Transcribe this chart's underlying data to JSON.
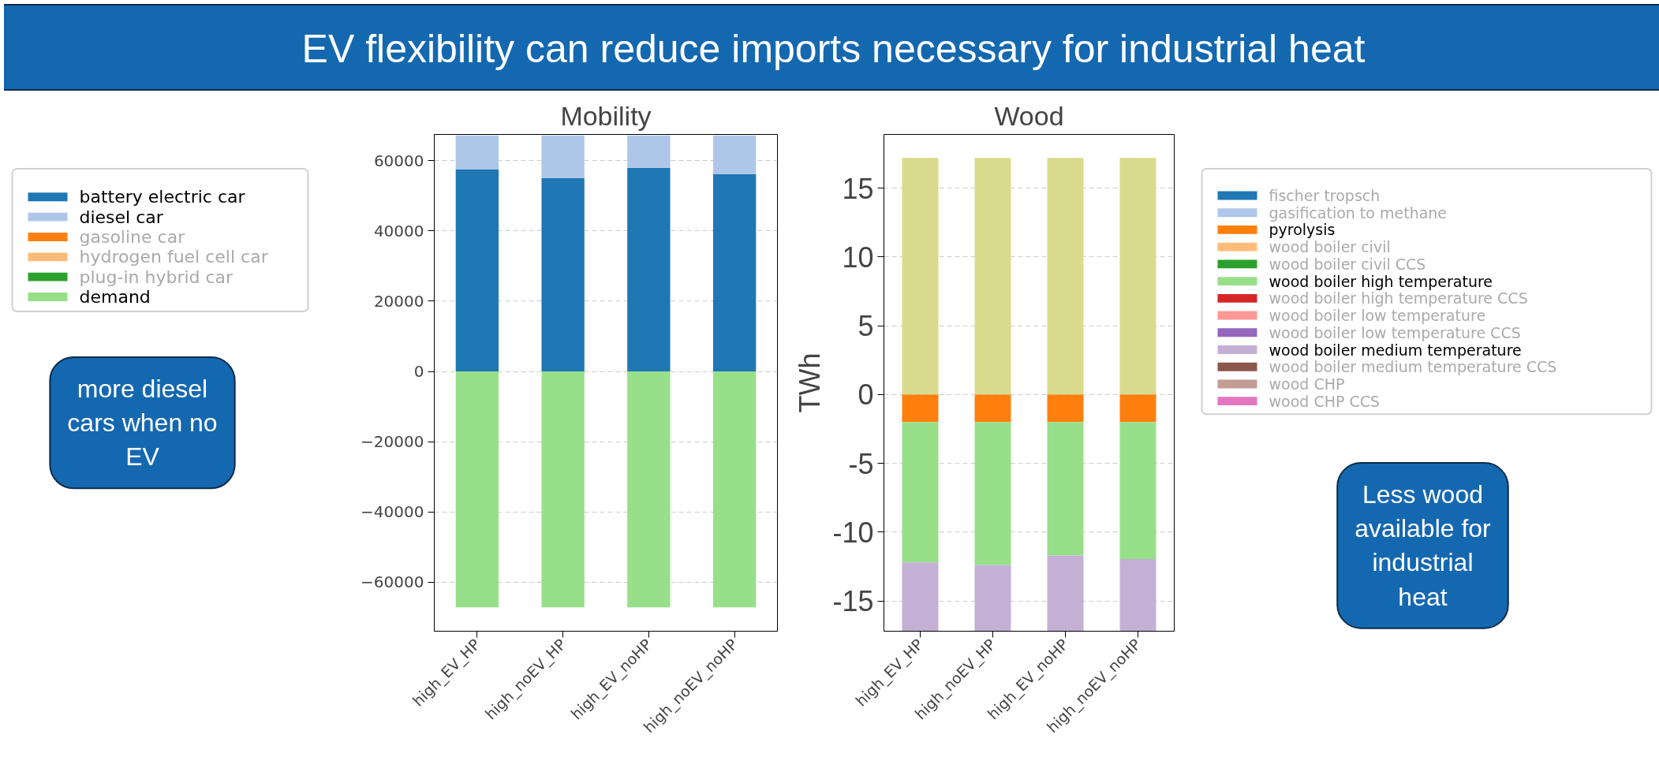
{
  "chart_data": [
    {
      "type": "bar",
      "title": "Mobility",
      "categories": [
        "high_EV_HP",
        "high_noEV_HP",
        "high_EV_noHP",
        "high_noEV_noHP"
      ],
      "stacked": true,
      "ylim": [
        -74000,
        67500
      ],
      "yticks": [
        {
          "value": -60000,
          "label": "−60000"
        },
        {
          "value": -40000,
          "label": "−40000"
        },
        {
          "value": -20000,
          "label": "−20000"
        },
        0,
        20000,
        40000,
        60000
      ],
      "grid": "y",
      "legend": "left",
      "series": [
        {
          "name": "battery electric car",
          "color": "#1f77b4",
          "values": [
            57500,
            55100,
            58000,
            56200
          ]
        },
        {
          "name": "diesel car",
          "color": "#aec7e8",
          "values": [
            9700,
            12100,
            9200,
            11000
          ]
        },
        {
          "name": "gasoline car",
          "color": "#ff7f0e",
          "values": [
            0,
            0,
            0,
            0
          ]
        },
        {
          "name": "hydrogen fuel cell car",
          "color": "#ffbb78",
          "values": [
            0,
            0,
            0,
            0
          ]
        },
        {
          "name": "plug-in hybrid car",
          "color": "#2ca02c",
          "values": [
            0,
            0,
            0,
            0
          ]
        },
        {
          "name": "demand",
          "color": "#98df8a",
          "values": [
            -67200,
            -67200,
            -67200,
            -67200
          ]
        }
      ],
      "annotations": [
        "EV flexibility can reduce imports necessary for industrial heat",
        "more diesel cars when no EV"
      ]
    },
    {
      "type": "bar",
      "title": "Wood",
      "ylabel": "TWh",
      "categories": [
        "high_EV_HP",
        "high_noEV_HP",
        "high_EV_noHP",
        "high_noEV_noHP"
      ],
      "stacked": true,
      "ylim": [
        -17.2,
        18.9
      ],
      "yticks": [
        -15,
        -10,
        -5,
        0,
        5,
        10,
        15
      ],
      "grid": "y",
      "legend": "right",
      "series": [
        {
          "name": "fischer tropsch",
          "color": "#1f77b4",
          "values": [
            0,
            0,
            0,
            0
          ]
        },
        {
          "name": "gasification to methane",
          "color": "#aec7e8",
          "values": [
            0,
            0,
            0,
            0
          ]
        },
        {
          "name": "pyrolysis",
          "color": "#ff7f0e",
          "values": [
            -2,
            -2,
            -2,
            -2
          ]
        },
        {
          "name": "wood boiler civil",
          "color": "#ffbb78",
          "values": [
            0,
            0,
            0,
            0
          ]
        },
        {
          "name": "wood boiler civil CCS",
          "color": "#2ca02c",
          "values": [
            0,
            0,
            0,
            0
          ]
        },
        {
          "name": "wood boiler high temperature",
          "color": "#98df8a",
          "values": [
            -10.2,
            -10.4,
            -9.7,
            -9.95
          ]
        },
        {
          "name": "wood boiler high temperature CCS",
          "color": "#d62728",
          "values": [
            0,
            0,
            0,
            0
          ]
        },
        {
          "name": "wood boiler low temperature",
          "color": "#ff9896",
          "values": [
            0,
            0,
            0,
            0
          ]
        },
        {
          "name": "wood boiler low temperature CCS",
          "color": "#9467bd",
          "values": [
            0,
            0,
            0,
            0
          ]
        },
        {
          "name": "wood boiler medium temperature",
          "color": "#c5b0d5",
          "values": [
            -5.0,
            -4.8,
            -5.5,
            -5.25
          ]
        },
        {
          "name": "wood boiler medium temperature CCS",
          "color": "#8c564b",
          "values": [
            0,
            0,
            0,
            0
          ]
        },
        {
          "name": "wood CHP",
          "color": "#c49c94",
          "values": [
            0,
            0,
            0,
            0
          ]
        },
        {
          "name": "wood CHP CCS",
          "color": "#e377c2",
          "values": [
            0,
            0,
            0,
            0
          ]
        },
        {
          "color": "#dbdb8d",
          "values": [
            17.2,
            17.2,
            17.2,
            17.2
          ]
        }
      ],
      "annotations": [
        "Less wood available for industrial heat"
      ]
    }
  ]
}
